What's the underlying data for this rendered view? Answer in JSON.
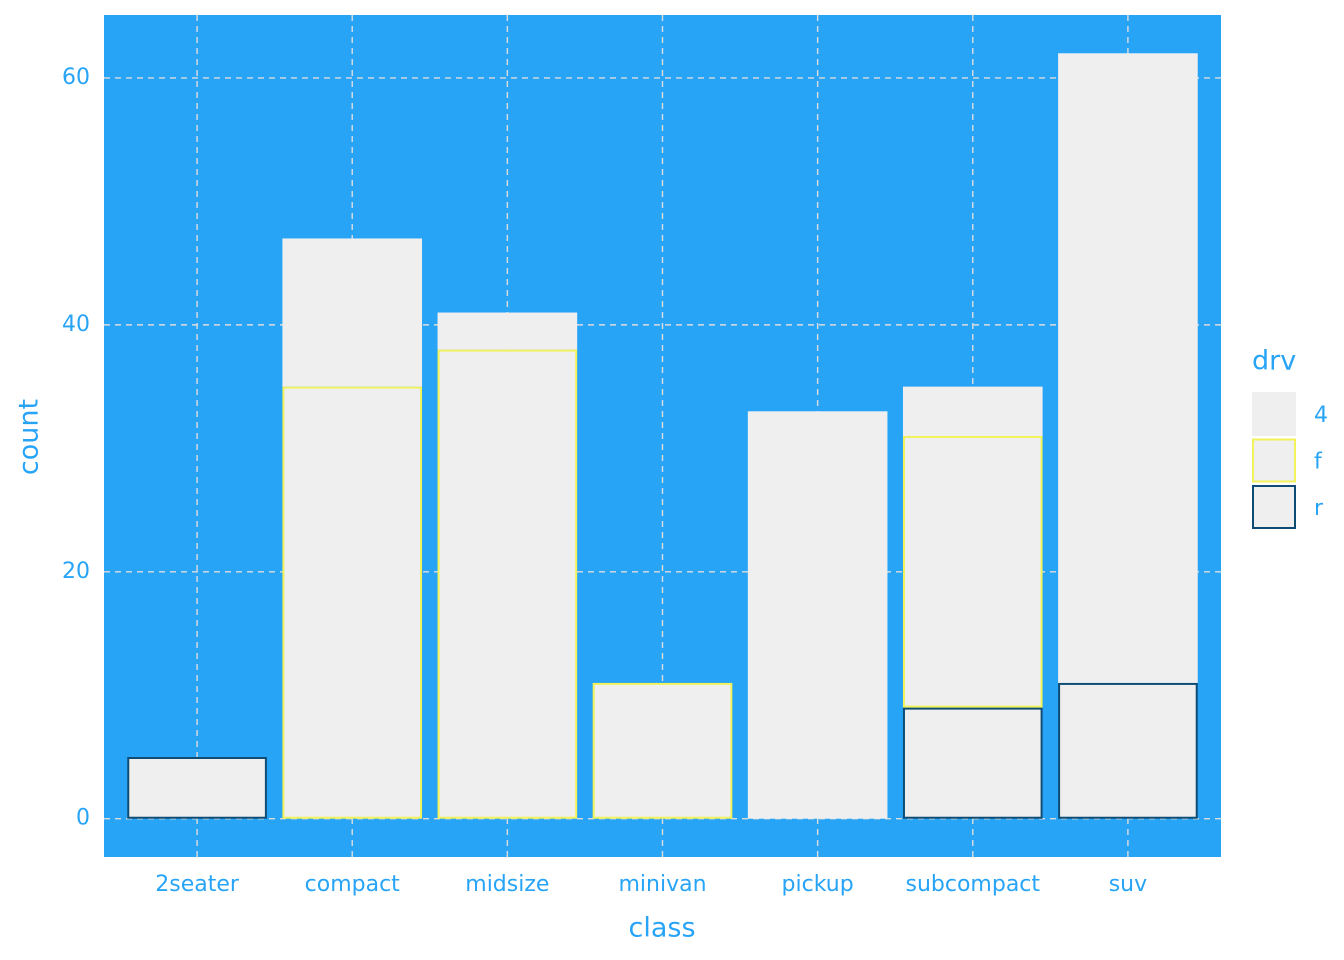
{
  "chart_data": {
    "type": "stacked_bar",
    "x_label": "class",
    "y_label": "count",
    "categories": [
      "2seater",
      "compact",
      "midsize",
      "minivan",
      "pickup",
      "subcompact",
      "suv"
    ],
    "series": [
      {
        "name": "4",
        "color": "#efefef",
        "edge": "#efefef",
        "values": [
          0,
          12,
          3,
          0,
          33,
          4,
          51
        ]
      },
      {
        "name": "f",
        "color": "#efefef",
        "edge": "#f2f25a",
        "values": [
          0,
          35,
          38,
          11,
          0,
          22,
          0
        ]
      },
      {
        "name": "r",
        "color": "#efefef",
        "edge": "#0f4c74",
        "values": [
          5,
          0,
          0,
          0,
          0,
          9,
          11
        ]
      }
    ],
    "legend_title": "drv",
    "ylim": [
      -3.1,
      65.1
    ],
    "yticks": [
      0,
      20,
      40,
      60
    ],
    "grid": true,
    "background": "#28a4f7"
  }
}
